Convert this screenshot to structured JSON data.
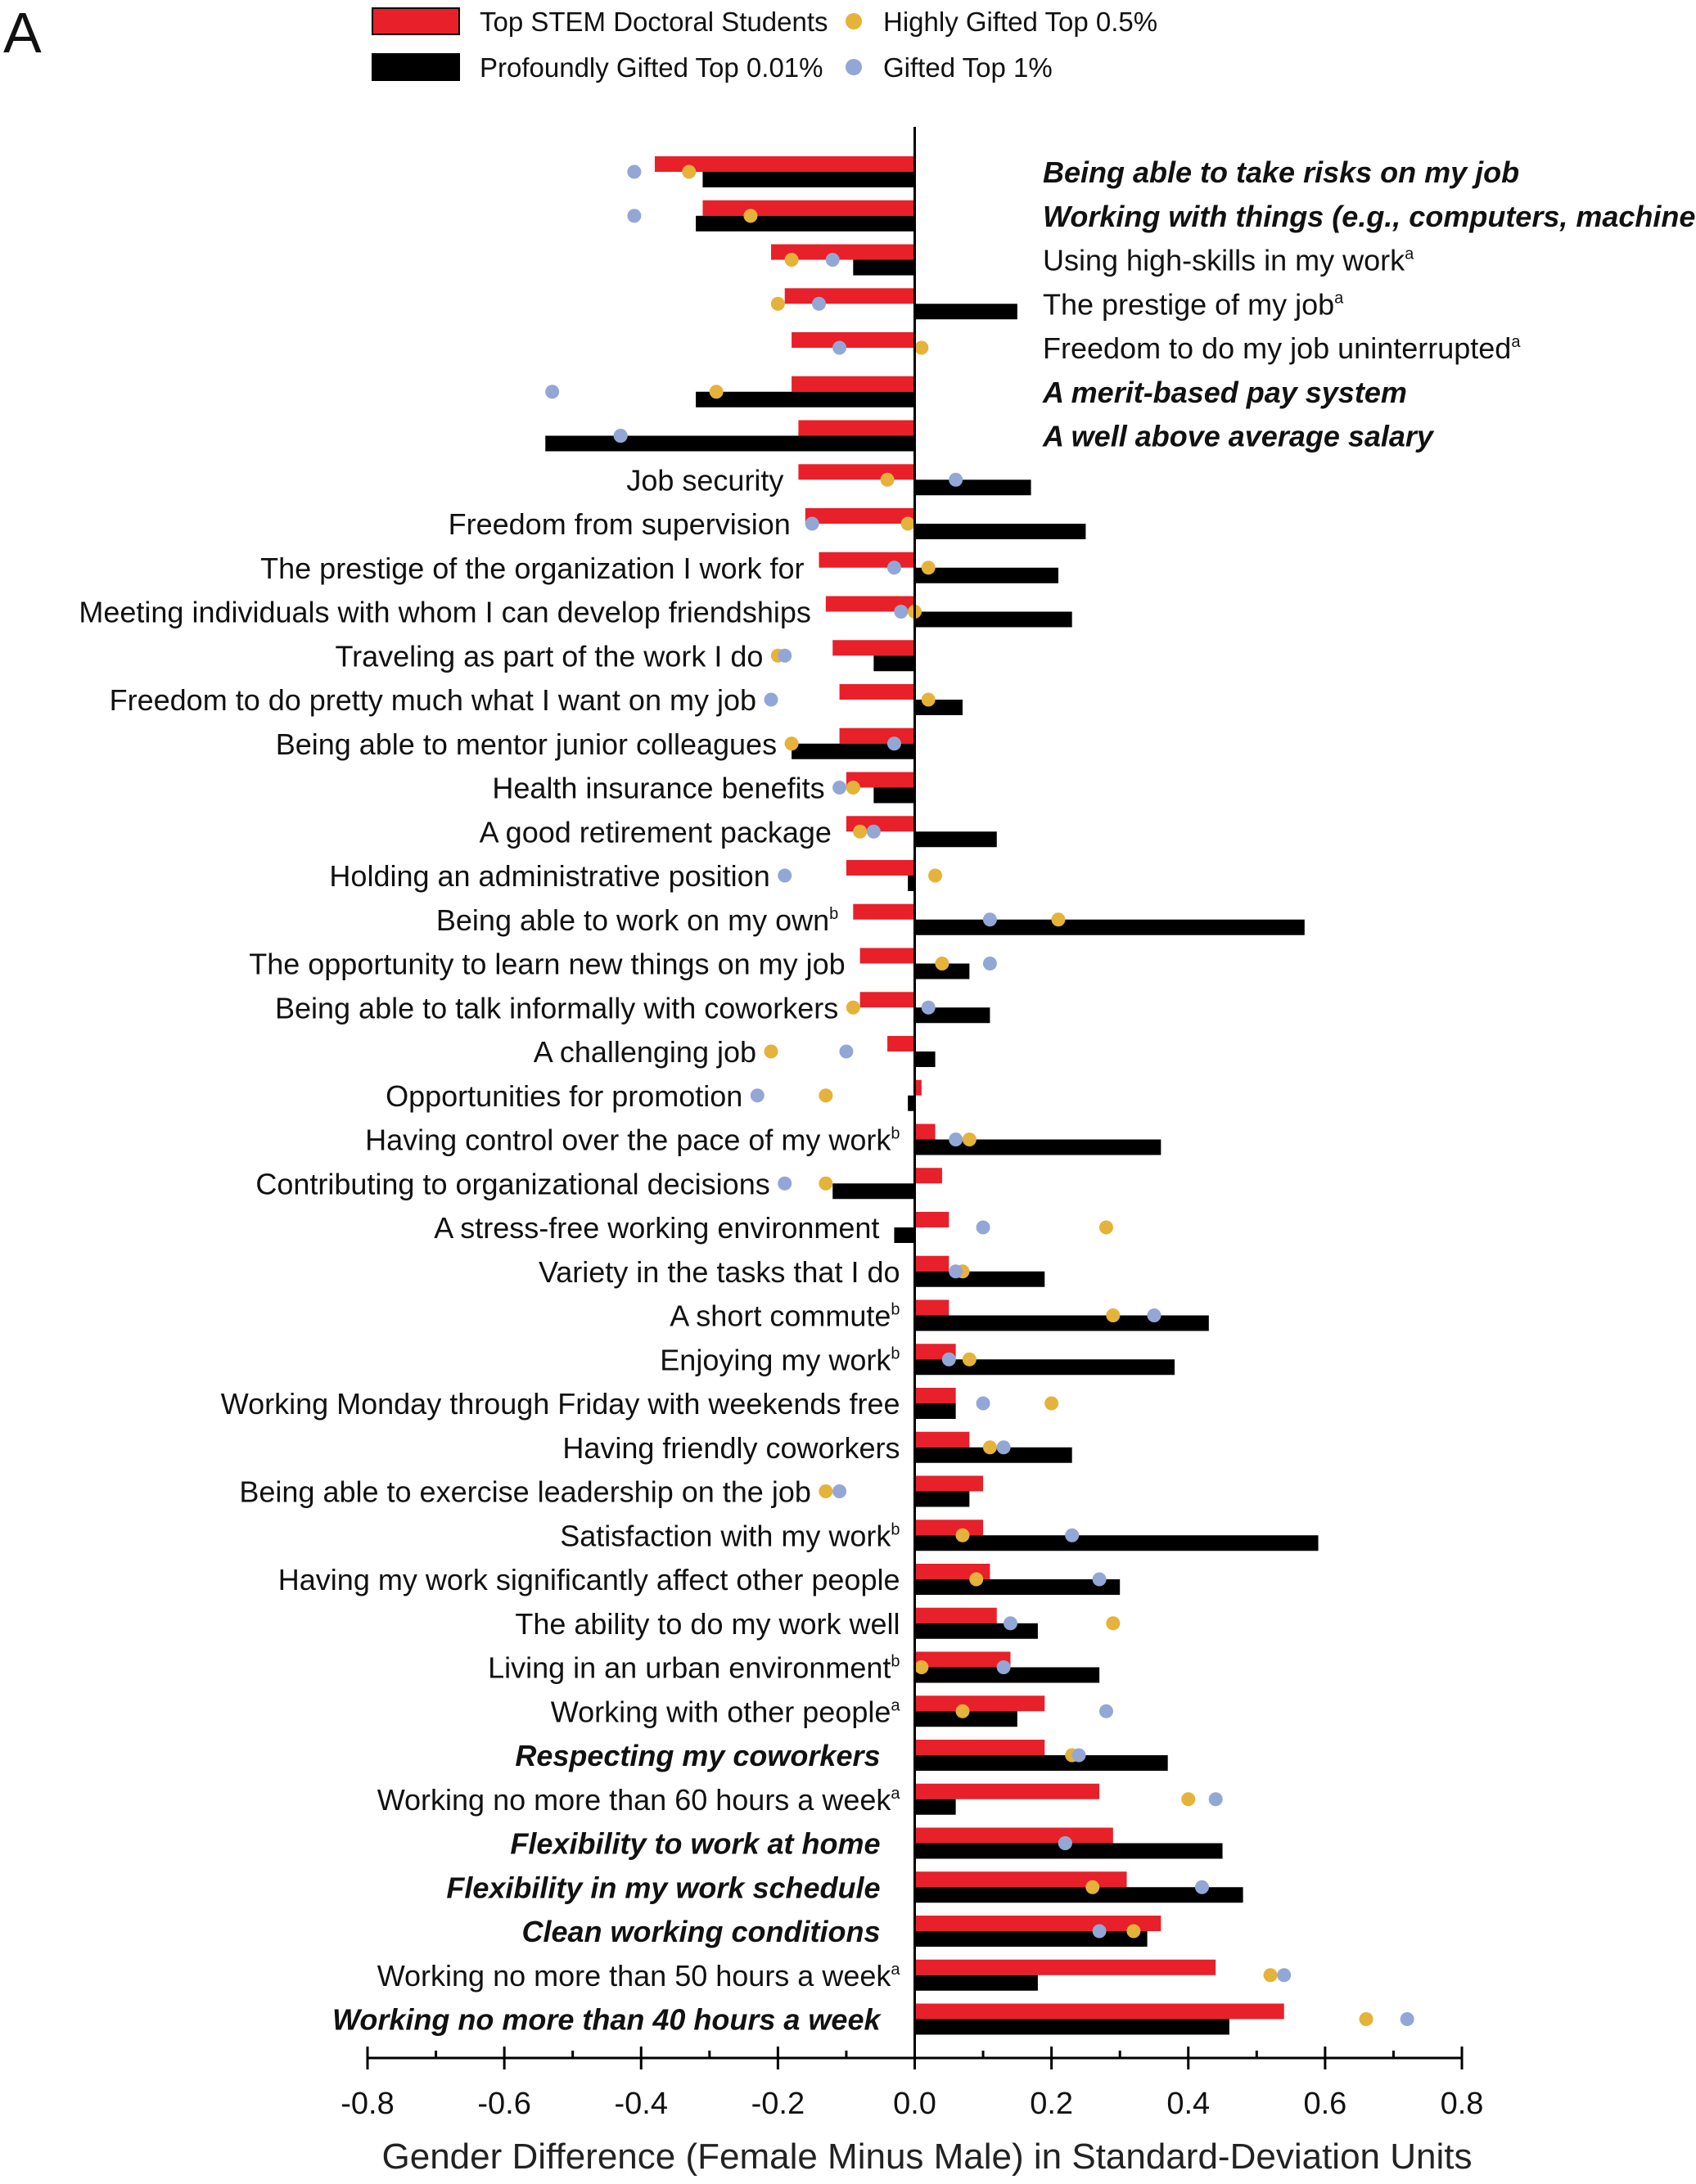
{
  "panel_label": "A",
  "chart_data": {
    "type": "bar",
    "orientation": "horizontal",
    "xlabel": "Gender Difference (Female Minus Male) in Standard-Deviation Units",
    "xlim": [
      -0.8,
      0.8
    ],
    "xticks": [
      "-0.8",
      "-0.6",
      "-0.4",
      "-0.2",
      "0.0",
      "0.2",
      "0.4",
      "0.6",
      "0.8"
    ],
    "legend": {
      "placement": "top",
      "entries": [
        {
          "name": "Top STEM Doctoral Students",
          "marker": "bar",
          "color": "#e8202a"
        },
        {
          "name": "Profoundly Gifted Top 0.01%",
          "marker": "bar",
          "color": "#000000"
        },
        {
          "name": "Highly Gifted Top 0.5%",
          "marker": "dot",
          "color": "#e5b23a"
        },
        {
          "name": "Gifted Top 1%",
          "marker": "dot",
          "color": "#93a7d6"
        }
      ]
    },
    "series_names": {
      "stem": "Top STEM Doctoral Students",
      "prof": "Profoundly Gifted Top 0.01%",
      "high": "Highly Gifted Top 0.5%",
      "gifted": "Gifted Top 1%"
    },
    "items": [
      {
        "label": "Being able to take risks on my job",
        "sup": "",
        "emphasis": true,
        "label_side": "right",
        "stem": -0.38,
        "prof": -0.31,
        "high": -0.33,
        "gifted": -0.41
      },
      {
        "label": "Working with things (e.g., computers, machines)",
        "sup": "",
        "emphasis": true,
        "label_side": "right",
        "stem": -0.31,
        "prof": -0.32,
        "high": -0.24,
        "gifted": -0.41
      },
      {
        "label": "Using high-skills in my work",
        "sup": "a",
        "emphasis": false,
        "label_side": "right",
        "stem": -0.21,
        "prof": -0.09,
        "high": -0.18,
        "gifted": -0.12
      },
      {
        "label": "The prestige of my job",
        "sup": "a",
        "emphasis": false,
        "label_side": "right",
        "stem": -0.19,
        "prof": 0.15,
        "high": -0.2,
        "gifted": -0.14
      },
      {
        "label": "Freedom to do my job uninterrupted",
        "sup": "a",
        "emphasis": false,
        "label_side": "right",
        "stem": -0.18,
        "prof": null,
        "high": 0.01,
        "gifted": -0.11
      },
      {
        "label": "A merit-based pay system",
        "sup": "",
        "emphasis": true,
        "label_side": "right",
        "stem": -0.18,
        "prof": -0.32,
        "high": -0.29,
        "gifted": -0.53
      },
      {
        "label": "A well above average salary",
        "sup": "",
        "emphasis": true,
        "label_side": "right",
        "stem": -0.17,
        "prof": -0.54,
        "high": -0.43,
        "gifted": -0.43
      },
      {
        "label": "Job security",
        "sup": "",
        "emphasis": false,
        "label_side": "left",
        "stem": -0.17,
        "prof": 0.17,
        "high": -0.04,
        "gifted": 0.06
      },
      {
        "label": "Freedom from supervision",
        "sup": "",
        "emphasis": false,
        "label_side": "left",
        "stem": -0.16,
        "prof": 0.25,
        "high": -0.01,
        "gifted": -0.15
      },
      {
        "label": "The prestige of the organization I work for",
        "sup": "",
        "emphasis": false,
        "label_side": "left",
        "stem": -0.14,
        "prof": 0.21,
        "high": 0.02,
        "gifted": -0.03
      },
      {
        "label": "Meeting individuals with whom I can develop friendships",
        "sup": "",
        "emphasis": false,
        "label_side": "left",
        "stem": -0.13,
        "prof": 0.23,
        "high": 0.0,
        "gifted": -0.02
      },
      {
        "label": "Traveling as part of the work I do",
        "sup": "",
        "emphasis": false,
        "label_side": "left",
        "stem": -0.12,
        "prof": -0.06,
        "high": -0.2,
        "gifted": -0.19
      },
      {
        "label": "Freedom to do pretty much what I want on my job",
        "sup": "",
        "emphasis": false,
        "label_side": "left",
        "stem": -0.11,
        "prof": 0.07,
        "high": 0.02,
        "gifted": -0.21
      },
      {
        "label": "Being able to mentor junior colleagues",
        "sup": "",
        "emphasis": false,
        "label_side": "left",
        "stem": -0.11,
        "prof": -0.18,
        "high": -0.18,
        "gifted": -0.03
      },
      {
        "label": "Health insurance benefits",
        "sup": "",
        "emphasis": false,
        "label_side": "left",
        "stem": -0.1,
        "prof": -0.06,
        "high": -0.09,
        "gifted": -0.11
      },
      {
        "label": "A good retirement package",
        "sup": "",
        "emphasis": false,
        "label_side": "left",
        "stem": -0.1,
        "prof": 0.12,
        "high": -0.08,
        "gifted": -0.06
      },
      {
        "label": "Holding an administrative position",
        "sup": "",
        "emphasis": false,
        "label_side": "left",
        "stem": -0.1,
        "prof": -0.01,
        "high": 0.03,
        "gifted": -0.19
      },
      {
        "label": "Being able to work on my own",
        "sup": "b",
        "emphasis": false,
        "label_side": "left",
        "stem": -0.09,
        "prof": 0.57,
        "high": 0.21,
        "gifted": 0.11
      },
      {
        "label": "The opportunity to learn new things on my job",
        "sup": "",
        "emphasis": false,
        "label_side": "left",
        "stem": -0.08,
        "prof": 0.08,
        "high": 0.04,
        "gifted": 0.11
      },
      {
        "label": "Being able to talk informally with coworkers",
        "sup": "",
        "emphasis": false,
        "label_side": "left",
        "stem": -0.08,
        "prof": 0.11,
        "high": -0.09,
        "gifted": 0.02
      },
      {
        "label": "A challenging job",
        "sup": "",
        "emphasis": false,
        "label_side": "left",
        "stem": -0.04,
        "prof": 0.03,
        "high": -0.21,
        "gifted": -0.1
      },
      {
        "label": "Opportunities for promotion",
        "sup": "",
        "emphasis": false,
        "label_side": "left",
        "stem": 0.01,
        "prof": -0.01,
        "high": -0.13,
        "gifted": -0.23
      },
      {
        "label": "Having control over the pace of my work",
        "sup": "b",
        "emphasis": false,
        "label_side": "left",
        "stem": 0.03,
        "prof": 0.36,
        "high": 0.08,
        "gifted": 0.06
      },
      {
        "label": "Contributing to organizational decisions",
        "sup": "",
        "emphasis": false,
        "label_side": "left",
        "stem": 0.04,
        "prof": -0.12,
        "high": -0.13,
        "gifted": -0.19
      },
      {
        "label": "A stress-free working environment",
        "sup": "",
        "emphasis": false,
        "label_side": "left",
        "stem": 0.05,
        "prof": -0.03,
        "high": 0.28,
        "gifted": 0.1
      },
      {
        "label": "Variety in the tasks that I do",
        "sup": "",
        "emphasis": false,
        "label_side": "left",
        "stem": 0.05,
        "prof": 0.19,
        "high": 0.07,
        "gifted": 0.06
      },
      {
        "label": "A short commute",
        "sup": "b",
        "emphasis": false,
        "label_side": "left",
        "stem": 0.05,
        "prof": 0.43,
        "high": 0.29,
        "gifted": 0.35
      },
      {
        "label": "Enjoying my work",
        "sup": "b",
        "emphasis": false,
        "label_side": "left",
        "stem": 0.06,
        "prof": 0.38,
        "high": 0.08,
        "gifted": 0.05
      },
      {
        "label": "Working Monday through Friday with weekends free",
        "sup": "",
        "emphasis": false,
        "label_side": "left",
        "stem": 0.06,
        "prof": 0.06,
        "high": 0.2,
        "gifted": 0.1
      },
      {
        "label": "Having friendly coworkers",
        "sup": "",
        "emphasis": false,
        "label_side": "left",
        "stem": 0.08,
        "prof": 0.23,
        "high": 0.11,
        "gifted": 0.13
      },
      {
        "label": "Being able to exercise leadership on the job",
        "sup": "",
        "emphasis": false,
        "label_side": "left",
        "stem": 0.1,
        "prof": 0.08,
        "high": -0.13,
        "gifted": -0.11
      },
      {
        "label": "Satisfaction with my work",
        "sup": "b",
        "emphasis": false,
        "label_side": "left",
        "stem": 0.1,
        "prof": 0.59,
        "high": 0.07,
        "gifted": 0.23
      },
      {
        "label": "Having my work significantly affect other people",
        "sup": "",
        "emphasis": false,
        "label_side": "left",
        "stem": 0.11,
        "prof": 0.3,
        "high": 0.09,
        "gifted": 0.27
      },
      {
        "label": "The ability to do my work well",
        "sup": "",
        "emphasis": false,
        "label_side": "left",
        "stem": 0.12,
        "prof": 0.18,
        "high": 0.29,
        "gifted": 0.14
      },
      {
        "label": "Living in an urban environment",
        "sup": "b",
        "emphasis": false,
        "label_side": "left",
        "stem": 0.14,
        "prof": 0.27,
        "high": 0.01,
        "gifted": 0.13
      },
      {
        "label": "Working with other people",
        "sup": "a",
        "emphasis": false,
        "label_side": "left",
        "stem": 0.19,
        "prof": 0.15,
        "high": 0.07,
        "gifted": 0.28
      },
      {
        "label": "Respecting my coworkers",
        "sup": "",
        "emphasis": true,
        "label_side": "left",
        "stem": 0.19,
        "prof": 0.37,
        "high": 0.23,
        "gifted": 0.24
      },
      {
        "label": "Working no more than 60 hours a week",
        "sup": "a",
        "emphasis": false,
        "label_side": "left",
        "stem": 0.27,
        "prof": 0.06,
        "high": 0.4,
        "gifted": 0.44
      },
      {
        "label": "Flexibility to work at home",
        "sup": "",
        "emphasis": true,
        "label_side": "left",
        "stem": 0.29,
        "prof": 0.45,
        "high": 0.22,
        "gifted": 0.22
      },
      {
        "label": "Flexibility in my work schedule",
        "sup": "",
        "emphasis": true,
        "label_side": "left",
        "stem": 0.31,
        "prof": 0.48,
        "high": 0.26,
        "gifted": 0.42
      },
      {
        "label": "Clean working conditions",
        "sup": "",
        "emphasis": true,
        "label_side": "left",
        "stem": 0.36,
        "prof": 0.34,
        "high": 0.32,
        "gifted": 0.27
      },
      {
        "label": "Working no more than 50 hours a week",
        "sup": "a",
        "emphasis": false,
        "label_side": "left",
        "stem": 0.44,
        "prof": 0.18,
        "high": 0.52,
        "gifted": 0.54
      },
      {
        "label": "Working no more than 40 hours a week",
        "sup": "",
        "emphasis": true,
        "label_side": "left",
        "stem": 0.54,
        "prof": 0.46,
        "high": 0.66,
        "gifted": 0.72
      }
    ]
  }
}
